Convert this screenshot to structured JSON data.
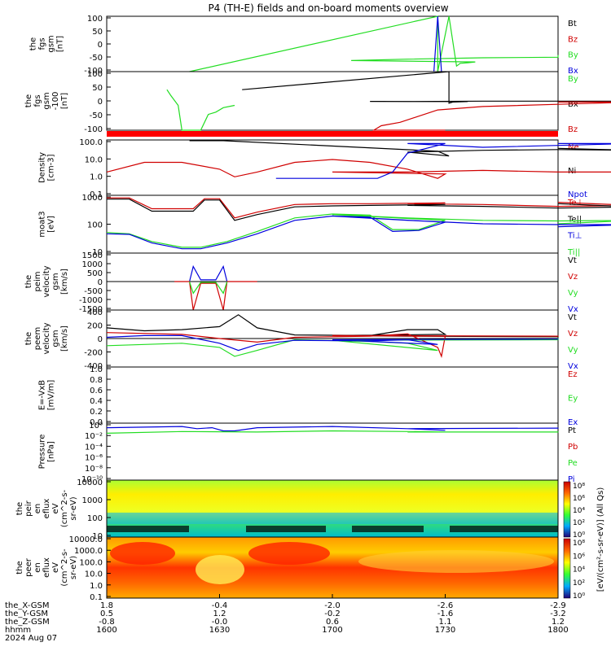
{
  "title": "P4 (TH-E) fields and on-board moments overview",
  "colors": {
    "black": "#000000",
    "red": "#d00000",
    "green": "#22dd22",
    "blue": "#0000dd"
  },
  "chart_data": [
    {
      "type": "line",
      "id": "p1",
      "ylabel": [
        "the",
        "fgs",
        "gsm",
        "[nT]"
      ],
      "yticks": [
        "100",
        "50",
        "0",
        "-50",
        "-100"
      ],
      "legend": [
        {
          "name": "Bt",
          "color": "black"
        },
        {
          "name": "Bz",
          "color": "red"
        },
        {
          "name": "By",
          "color": "green"
        },
        {
          "name": "Bx",
          "color": "blue"
        }
      ],
      "ylim": [
        -100,
        100
      ],
      "series": [
        {
          "color": "green",
          "x": [
            1622,
            1688,
            1688,
            1691,
            1693,
            1694,
            1696,
            1698,
            1705,
            1720,
            1740,
            1760,
            1800
          ],
          "y": [
            -100,
            100,
            -100,
            100,
            -80,
            -70,
            -68,
            -65,
            -60,
            -55,
            -50,
            -48,
            -40
          ]
        },
        {
          "color": "blue",
          "x": [
            1687,
            1688,
            1689
          ],
          "y": [
            -100,
            100,
            -100
          ]
        }
      ]
    },
    {
      "type": "line",
      "id": "p2",
      "ylabel": [
        "the",
        "fgs",
        "gsm",
        "-100",
        "[nT]"
      ],
      "yticks": [
        "100",
        "50",
        "0",
        "-50",
        "-100"
      ],
      "legend": [
        {
          "name": "By",
          "color": "green"
        },
        {
          "name": "Bx",
          "color": "black"
        },
        {
          "name": "Bz",
          "color": "red"
        }
      ],
      "ylim": [
        -130,
        130
      ],
      "series": [
        {
          "color": "green",
          "x": [
            1616,
            1617,
            1619,
            1620,
            1622,
            1625,
            1627,
            1629,
            1631,
            1634
          ],
          "y": [
            50,
            25,
            -20,
            -130,
            -130,
            -130,
            -60,
            -50,
            -30,
            -20
          ]
        },
        {
          "color": "black",
          "x": [
            1636,
            1691,
            1691,
            1692,
            1696,
            1710,
            1720,
            1740,
            1760,
            1780,
            1800
          ],
          "y": [
            50,
            130,
            -10,
            -5,
            -3,
            -2,
            -3,
            -1,
            -1,
            -1,
            -1
          ]
        },
        {
          "color": "red",
          "x": [
            1690,
            1711,
            1713,
            1718,
            1728,
            1740,
            1760,
            1780,
            1800
          ],
          "y": [
            -130,
            -130,
            -110,
            -95,
            -40,
            -25,
            -15,
            -5,
            -5
          ]
        }
      ]
    },
    {
      "type": "line",
      "id": "p3",
      "ylabel": [
        "Density",
        "[cm-3]"
      ],
      "yticks": [
        "100.0",
        "10.0",
        "1.0",
        "0.1"
      ],
      "legend": [
        {
          "name": "Ne",
          "color": "red"
        },
        {
          "name": "Ni",
          "color": "black"
        },
        {
          "name": "Npot",
          "color": "blue"
        }
      ],
      "ylog": [
        0.07,
        200
      ],
      "series": [
        {
          "color": "red",
          "x": [
            1600,
            1610,
            1620,
            1630,
            1634,
            1640,
            1650,
            1660,
            1670,
            1680,
            1688,
            1690,
            1700,
            1720,
            1740,
            1760,
            1780,
            1800
          ],
          "y": [
            2,
            8,
            8,
            3,
            1,
            2,
            8,
            12,
            8,
            3,
            0.8,
            1.5,
            2,
            2,
            2.5,
            2,
            2,
            2
          ]
        },
        {
          "color": "black",
          "x": [
            1622,
            1624,
            1628,
            1631,
            1688,
            1691,
            1720,
            1740,
            1760,
            1780,
            1800
          ],
          "y": [
            180,
            180,
            180,
            180,
            40,
            20,
            35,
            45,
            50,
            45,
            60
          ]
        },
        {
          "color": "blue",
          "x": [
            1645,
            1672,
            1676,
            1680,
            1690,
            1720,
            1740,
            1780,
            1800
          ],
          "y": [
            0.8,
            0.8,
            2,
            30,
            120,
            120,
            70,
            120,
            120
          ]
        }
      ]
    },
    {
      "type": "line",
      "id": "p4",
      "ylabel": [
        "moat3",
        "[eV]"
      ],
      "yticks": [
        "1000",
        "100",
        "10"
      ],
      "legend": [
        {
          "name": "Te⊥",
          "color": "red"
        },
        {
          "name": "Te||",
          "color": "black"
        },
        {
          "name": "Ti⊥",
          "color": "blue"
        },
        {
          "name": "Ti||",
          "color": "green"
        }
      ],
      "ylog": [
        3,
        3000
      ],
      "series": [
        {
          "color": "red",
          "x": [
            1600,
            1606,
            1612,
            1620,
            1623,
            1626,
            1630,
            1634,
            1640,
            1650,
            1660,
            1670,
            1690,
            1720,
            1740,
            1760,
            1780,
            1800
          ],
          "y": [
            2200,
            2200,
            600,
            600,
            600,
            2000,
            2000,
            200,
            400,
            1000,
            1100,
            1100,
            1200,
            1100,
            1000,
            800,
            900,
            1300
          ]
        },
        {
          "color": "black",
          "x": [
            1600,
            1606,
            1612,
            1620,
            1623,
            1626,
            1630,
            1634,
            1640,
            1650,
            1660,
            1670,
            1690,
            1720,
            1740,
            1760,
            1780,
            1800
          ],
          "y": [
            1900,
            1900,
            450,
            450,
            450,
            1700,
            1700,
            150,
            300,
            750,
            850,
            900,
            1000,
            900,
            800,
            650,
            750,
            1100
          ]
        },
        {
          "color": "green",
          "x": [
            1600,
            1606,
            1612,
            1620,
            1625,
            1632,
            1640,
            1650,
            1660,
            1670,
            1676,
            1683,
            1690,
            1700,
            1720,
            1740,
            1760,
            1780,
            1800
          ],
          "y": [
            35,
            30,
            12,
            6,
            6,
            12,
            40,
            200,
            320,
            280,
            50,
            50,
            150,
            300,
            200,
            150,
            140,
            150,
            100
          ]
        },
        {
          "color": "blue",
          "x": [
            1600,
            1606,
            1612,
            1620,
            1625,
            1632,
            1640,
            1650,
            1660,
            1670,
            1676,
            1683,
            1690,
            1700,
            1720,
            1740,
            1760,
            1780,
            1800
          ],
          "y": [
            30,
            28,
            10,
            5,
            5,
            10,
            30,
            150,
            250,
            220,
            40,
            45,
            120,
            250,
            150,
            100,
            90,
            90,
            70
          ]
        }
      ]
    },
    {
      "type": "line",
      "id": "p5",
      "ylabel": [
        "the",
        "peim",
        "velocity",
        "gsm",
        "[km/s]"
      ],
      "yticks": [
        "1500",
        "1000",
        "500",
        "0",
        "-500",
        "-1000",
        "-1500"
      ],
      "legend": [
        {
          "name": "Vt",
          "color": "black"
        },
        {
          "name": "Vz",
          "color": "red"
        },
        {
          "name": "Vy",
          "color": "green"
        },
        {
          "name": "Vx",
          "color": "blue"
        }
      ],
      "ylim": [
        -1700,
        1700
      ],
      "series": [
        {
          "color": "blue",
          "x": [
            1622,
            1623,
            1625,
            1629,
            1631,
            1632
          ],
          "y": [
            0,
            900,
            100,
            100,
            900,
            0
          ]
        },
        {
          "color": "red",
          "x": [
            1618,
            1622,
            1623,
            1625,
            1629,
            1631,
            1632,
            1640
          ],
          "y": [
            0,
            0,
            -1700,
            -100,
            -100,
            -1700,
            0,
            0
          ]
        },
        {
          "color": "green",
          "x": [
            1622,
            1623,
            1625,
            1629,
            1631,
            1632
          ],
          "y": [
            0,
            -700,
            -50,
            -50,
            -700,
            0
          ]
        }
      ]
    },
    {
      "type": "line",
      "id": "p6",
      "ylabel": [
        "the",
        "peem",
        "velocity",
        "gsm",
        "[km/s]"
      ],
      "yticks": [
        "400",
        "200",
        "0",
        "-200",
        "-400"
      ],
      "legend": [
        {
          "name": "Vt",
          "color": "black"
        },
        {
          "name": "Vz",
          "color": "red"
        },
        {
          "name": "Vy",
          "color": "green"
        },
        {
          "name": "Vx",
          "color": "blue"
        }
      ],
      "ylim": [
        -480,
        480
      ],
      "series": [
        {
          "color": "black",
          "x": [
            1600,
            1610,
            1620,
            1630,
            1635,
            1640,
            1650,
            1670,
            1680,
            1688,
            1690,
            1700,
            1720,
            1760,
            1800
          ],
          "y": [
            180,
            130,
            150,
            200,
            400,
            180,
            60,
            50,
            150,
            150,
            70,
            50,
            40,
            30,
            20
          ]
        },
        {
          "color": "red",
          "x": [
            1600,
            1620,
            1630,
            1640,
            1650,
            1670,
            1680,
            1688,
            1689,
            1690,
            1700,
            1760,
            1800
          ],
          "y": [
            100,
            70,
            0,
            -60,
            20,
            40,
            80,
            -150,
            -300,
            40,
            50,
            40,
            30
          ]
        },
        {
          "color": "green",
          "x": [
            1600,
            1610,
            1620,
            1630,
            1634,
            1640,
            1650,
            1670,
            1680,
            1688,
            1700,
            1760,
            1800
          ],
          "y": [
            -120,
            -100,
            -80,
            -150,
            -300,
            -200,
            -20,
            -50,
            -80,
            -200,
            -30,
            -20,
            10
          ]
        },
        {
          "color": "blue",
          "x": [
            1600,
            1610,
            1620,
            1630,
            1635,
            1640,
            1650,
            1670,
            1680,
            1688,
            1700,
            1760,
            1800
          ],
          "y": [
            20,
            50,
            50,
            -80,
            -200,
            -100,
            -30,
            -40,
            -20,
            -100,
            -20,
            -10,
            0
          ]
        }
      ]
    },
    {
      "type": "line",
      "id": "p7",
      "ylabel": [
        "E=-VxB",
        "[mV/m]"
      ],
      "yticks": [
        "1.0",
        "0.8",
        "0.6",
        "0.4",
        "0.2",
        "0.0"
      ],
      "legend": [
        {
          "name": "Ez",
          "color": "red"
        },
        {
          "name": "Ey",
          "color": "green"
        },
        {
          "name": "Ex",
          "color": "blue"
        }
      ],
      "ylim": [
        0,
        1
      ],
      "series": []
    },
    {
      "type": "line",
      "id": "p8",
      "ylabel": [
        "Pressure",
        "[nPa]"
      ],
      "yticks": [
        "10⁰",
        "10⁻²",
        "10⁻⁴",
        "10⁻⁶",
        "10⁻⁸",
        "10⁻¹⁰"
      ],
      "legend": [
        {
          "name": "Pt",
          "color": "black"
        },
        {
          "name": "Pb",
          "color": "red"
        },
        {
          "name": "Pe",
          "color": "green"
        },
        {
          "name": "Pi",
          "color": "blue"
        }
      ],
      "ylog": [
        1e-10,
        2
      ],
      "series": [
        {
          "color": "blue",
          "x": [
            1600,
            1620,
            1624,
            1628,
            1631,
            1634,
            1640,
            1660,
            1680,
            1690,
            1720,
            1760,
            1800
          ],
          "y": [
            0.3,
            0.5,
            0.2,
            0.3,
            0.08,
            0.08,
            0.3,
            0.5,
            0.2,
            0.1,
            0.2,
            0.25,
            0.2
          ]
        },
        {
          "color": "green",
          "x": [
            1600,
            1620,
            1640,
            1660,
            1680,
            1690,
            1720,
            1760,
            1800
          ],
          "y": [
            0.03,
            0.06,
            0.05,
            0.08,
            0.06,
            0.05,
            0.05,
            0.05,
            0.04
          ]
        }
      ]
    },
    {
      "type": "heatmap",
      "id": "p9",
      "ylabel": [
        "the",
        "peir",
        "en",
        "eflux",
        "eV",
        "(cm^2-s-",
        "sr-eV)"
      ],
      "yticks": [
        "10000",
        "1000",
        "100",
        "10"
      ]
    },
    {
      "type": "heatmap",
      "id": "p10",
      "ylabel": [
        "the",
        "peer",
        "en",
        "eflux",
        "eV",
        "(cm^2-s-",
        "sr-eV)"
      ],
      "yticks": [
        "10000.0",
        "1000.0",
        "100.0",
        "10.0",
        "1.0",
        "0.1"
      ]
    }
  ],
  "colorbar": {
    "ticks_top": [
      "10⁸",
      "10⁶",
      "10⁴",
      "10²",
      "10⁰"
    ],
    "ticks_bottom": [
      "10⁸",
      "10⁶",
      "10⁴",
      "10²",
      "10⁰"
    ],
    "label": "[eV/(cm²-s-sr-eV)] (All Qs)"
  },
  "xaxis": {
    "rows": [
      {
        "label": "the_X-GSM",
        "values": [
          "1.8",
          "-0.4",
          "-2.0",
          "-2.6",
          "-2.9"
        ]
      },
      {
        "label": "the_Y-GSM",
        "values": [
          "0.5",
          "1.2",
          "-0.2",
          "-1.6",
          "-3.2"
        ]
      },
      {
        "label": "the_Z-GSM",
        "values": [
          "-0.8",
          "-0.0",
          "0.6",
          "1.1",
          "1.2"
        ]
      },
      {
        "label": "hhmm",
        "values": [
          "1600",
          "1630",
          "1700",
          "1730",
          "1800"
        ]
      }
    ],
    "date": "2024 Aug 07"
  }
}
